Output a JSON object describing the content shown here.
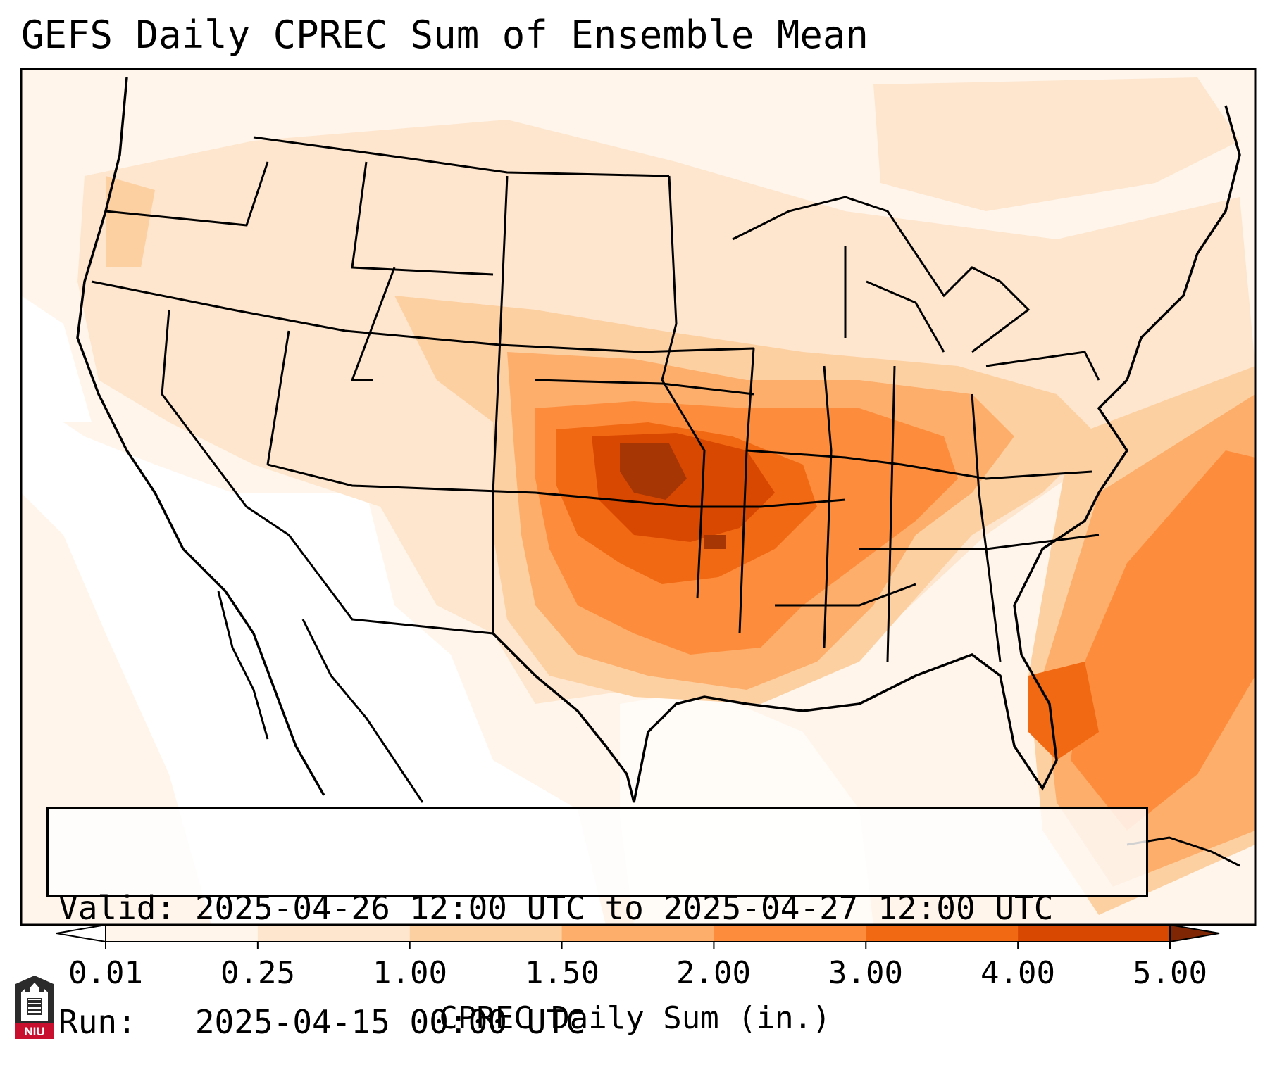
{
  "title": "GEFS Daily CPREC Sum of Ensemble Mean",
  "info": {
    "valid_line": "Valid: 2025-04-26 12:00 UTC to 2025-04-27 12:00 UTC",
    "run_line": "Run:   2025-04-15 00:00 UTC"
  },
  "colorbar": {
    "label": "CPREC Daily Sum (in.)",
    "ticks": [
      "0.01",
      "0.25",
      "1.00",
      "1.50",
      "2.00",
      "3.00",
      "4.00",
      "5.00"
    ],
    "colors": [
      "#fff5eb",
      "#fee6ce",
      "#fdd0a2",
      "#fdae6b",
      "#fd8d3c",
      "#f16913",
      "#d94801",
      "#a63603"
    ],
    "under_color": "#ffffff",
    "over_color": "#7f2704",
    "extend": "both"
  },
  "logo": {
    "text": "NIU",
    "colors": {
      "shield": "#2b2b2b",
      "banner": "#c8102e"
    }
  }
}
